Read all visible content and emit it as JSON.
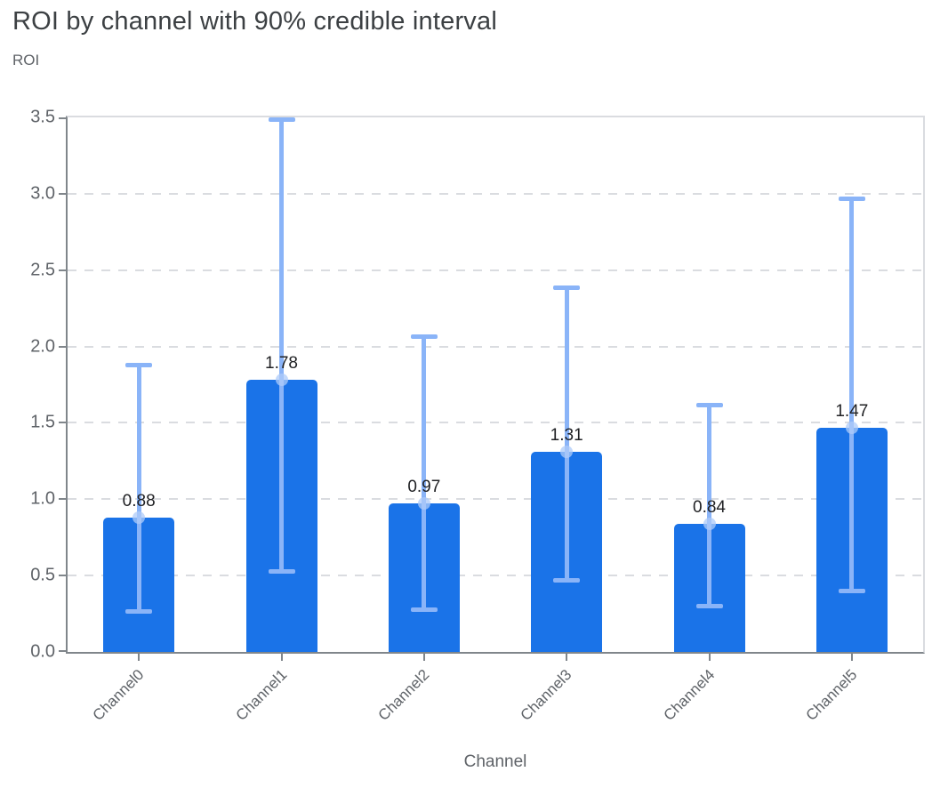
{
  "header": {
    "title": "ROI by channel with 90% credible interval"
  },
  "chart_data": {
    "type": "bar",
    "title": "ROI by channel with 90% credible interval",
    "ylabel": "ROI",
    "xlabel": "Channel",
    "categories": [
      "Channel0",
      "Channel1",
      "Channel2",
      "Channel3",
      "Channel4",
      "Channel5"
    ],
    "values": [
      0.88,
      1.78,
      0.97,
      1.31,
      0.84,
      1.47
    ],
    "value_labels": [
      "0.88",
      "1.78",
      "0.97",
      "1.31",
      "0.84",
      "1.47"
    ],
    "error_low": [
      0.27,
      0.53,
      0.28,
      0.47,
      0.3,
      0.4
    ],
    "error_high": [
      1.88,
      3.49,
      2.07,
      2.39,
      1.62,
      2.97
    ],
    "error_label": "90% credible interval",
    "ylim": [
      0,
      3.5
    ],
    "yticks": [
      "0.0",
      "0.5",
      "1.0",
      "1.5",
      "2.0",
      "2.5",
      "3.0",
      "3.5"
    ],
    "grid": "horizontal-dashed",
    "legend": "none",
    "colors": {
      "bar": "#1a73e8",
      "error_bar": "#8ab4f8",
      "marker": "rgba(174,203,250,0.75)",
      "grid": "#dadce0",
      "axis": "#80868b",
      "tick_label": "#5f6368",
      "data_label": "#202124",
      "title": "#3c4043"
    }
  }
}
